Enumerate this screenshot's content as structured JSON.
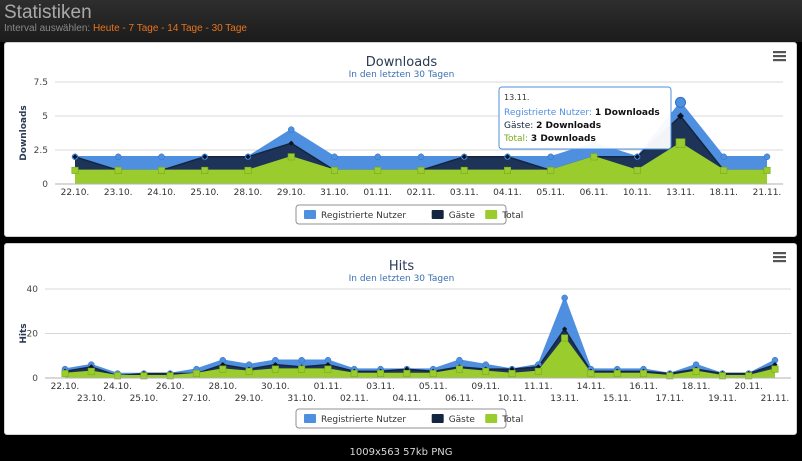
{
  "header": {
    "title": "Statistiken",
    "interval_label": "Interval auswählen:",
    "interval_options": [
      "Heute",
      "7 Tage",
      "14 Tage",
      "30 Tage"
    ],
    "separator": " - "
  },
  "footer": {
    "image_info": "1009x563 57kb PNG"
  },
  "colors": {
    "registered": "#4f8fe0",
    "guests": "#142540",
    "total": "#9acc2e",
    "tooltip_border": "#4f8fe0"
  },
  "chart_data": [
    {
      "id": "downloads",
      "type": "area",
      "title": "Downloads",
      "subtitle": "In den letzten 30 Tagen",
      "ylabel": "Downloads",
      "ylim": [
        0,
        7.5
      ],
      "yticks": [
        "0",
        "2.5",
        "5",
        "7.5"
      ],
      "grid": true,
      "legend": "bottom-center",
      "categories": [
        "22.10.",
        "23.10.",
        "24.10.",
        "25.10.",
        "28.10.",
        "29.10.",
        "31.10.",
        "01.11.",
        "02.11.",
        "03.11.",
        "04.11.",
        "05.11.",
        "06.11.",
        "10.11.",
        "13.11.",
        "18.11.",
        "21.11."
      ],
      "label_rows": 1,
      "series": [
        {
          "name": "Registrierte Nutzer",
          "values": [
            2,
            2,
            2,
            2,
            2,
            4,
            2,
            2,
            2,
            2,
            2,
            2,
            3,
            2,
            6,
            2,
            2
          ]
        },
        {
          "name": "Gäste",
          "values": [
            2,
            1,
            1,
            2,
            2,
            3,
            1,
            1,
            1,
            2,
            2,
            1,
            2,
            2,
            5,
            1,
            1
          ]
        },
        {
          "name": "Total",
          "values": [
            1,
            1,
            1,
            1,
            1,
            2,
            1,
            1,
            1,
            1,
            1,
            1,
            2,
            1,
            3,
            1,
            1
          ]
        }
      ],
      "tooltip": {
        "date": "13.11.",
        "index": 14,
        "rows": [
          {
            "label": "Registrierte Nutzer:",
            "value": "1 Downloads"
          },
          {
            "label": "Gäste:",
            "value": "2 Downloads"
          },
          {
            "label": "Total:",
            "value": "3 Downloads"
          }
        ]
      }
    },
    {
      "id": "hits",
      "type": "area",
      "title": "Hits",
      "subtitle": "In den letzten 30 Tagen",
      "ylabel": "Hits",
      "ylim": [
        0,
        40
      ],
      "yticks": [
        "0",
        "20",
        "40"
      ],
      "grid": true,
      "legend": "bottom-center",
      "categories": [
        "22.10.",
        "23.10.",
        "24.10.",
        "25.10.",
        "26.10.",
        "27.10.",
        "28.10.",
        "29.10.",
        "30.10.",
        "31.10.",
        "01.11.",
        "02.11.",
        "03.11.",
        "04.11.",
        "05.11.",
        "06.11.",
        "09.11.",
        "10.11.",
        "11.11.",
        "13.11.",
        "14.11.",
        "15.11.",
        "16.11.",
        "17.11.",
        "18.11.",
        "19.11.",
        "20.11.",
        "21.11."
      ],
      "label_rows": 2,
      "series": [
        {
          "name": "Registrierte Nutzer",
          "values": [
            4,
            6,
            2,
            2,
            2,
            4,
            8,
            6,
            8,
            8,
            8,
            4,
            4,
            4,
            4,
            8,
            6,
            4,
            6,
            36,
            4,
            4,
            4,
            2,
            6,
            2,
            2,
            8
          ]
        },
        {
          "name": "Gäste",
          "values": [
            3,
            5,
            1,
            2,
            2,
            2,
            6,
            4,
            6,
            5,
            6,
            3,
            3,
            4,
            3,
            5,
            4,
            4,
            5,
            22,
            3,
            3,
            3,
            2,
            4,
            2,
            2,
            6
          ]
        },
        {
          "name": "Total",
          "values": [
            2,
            3,
            1,
            1,
            1,
            2,
            4,
            3,
            4,
            4,
            4,
            2,
            2,
            2,
            2,
            4,
            3,
            2,
            3,
            18,
            2,
            2,
            2,
            1,
            3,
            1,
            1,
            4
          ]
        }
      ]
    }
  ]
}
